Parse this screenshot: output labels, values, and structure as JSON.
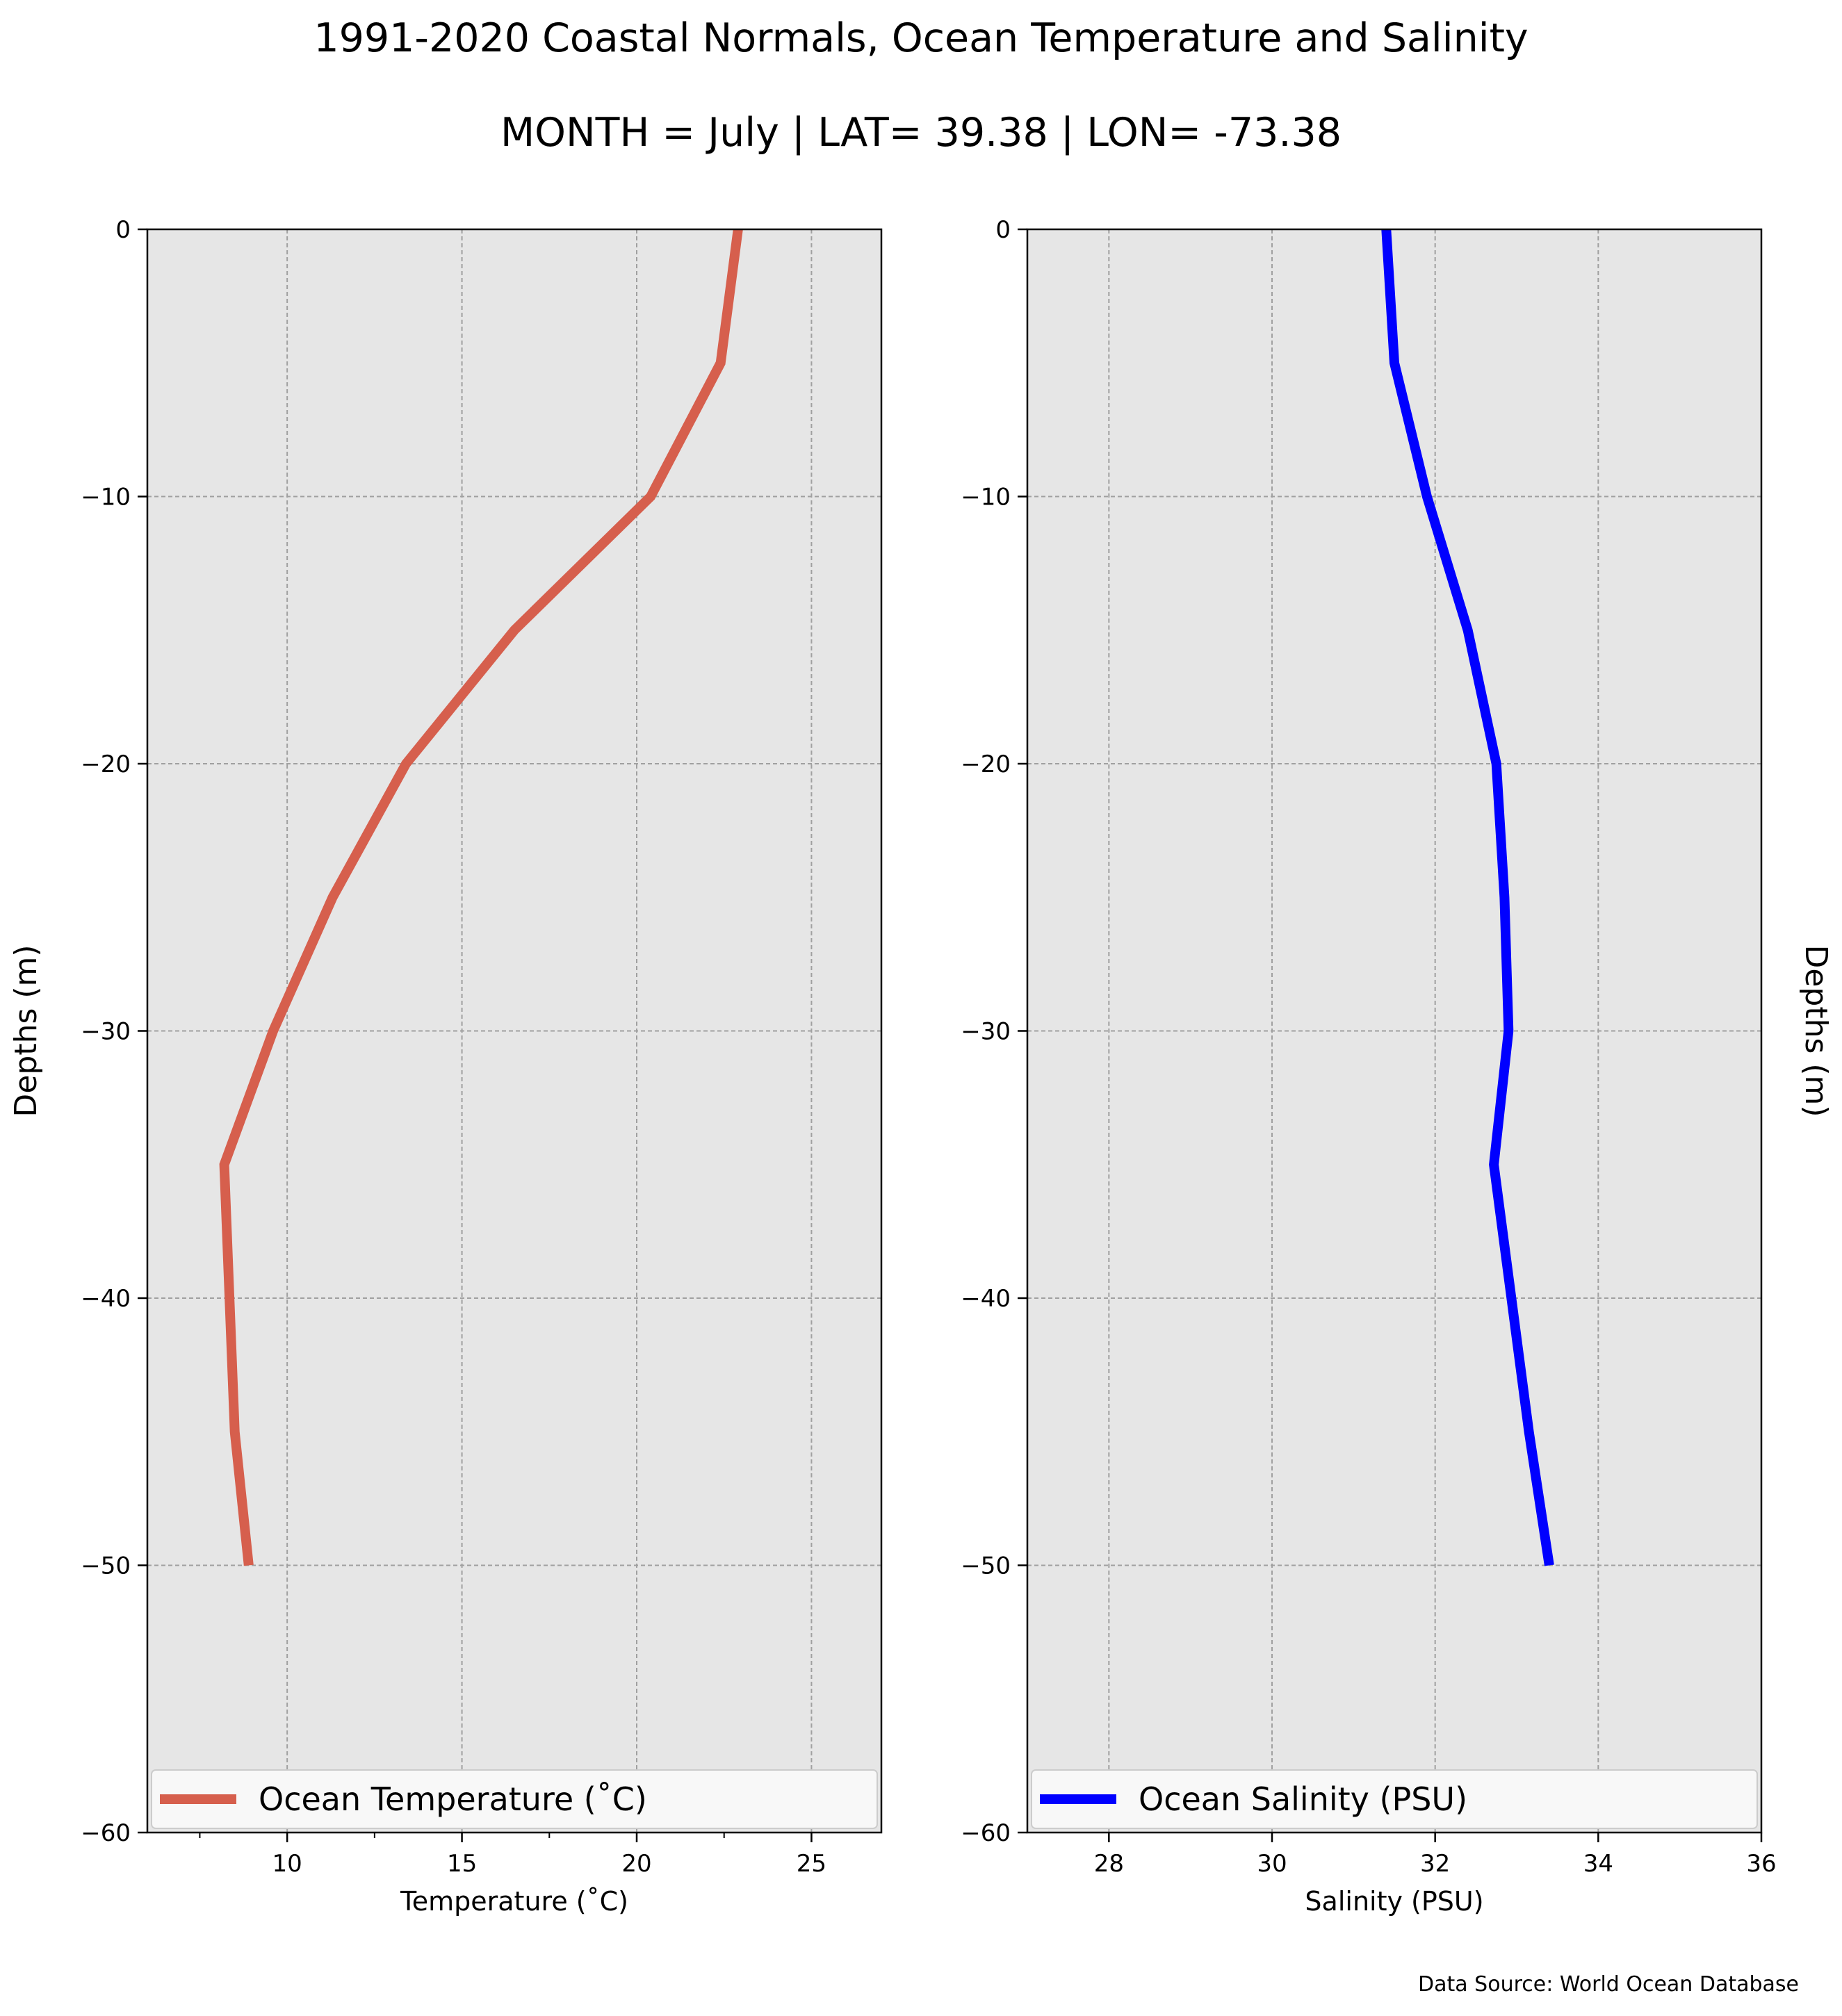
{
  "title": "1991-2020 Coastal Normals, Ocean Temperature and Salinity",
  "subtitle": "MONTH = July | LAT= 39.38 | LON= -73.38",
  "source": "Data Source: World Ocean Database",
  "colors": {
    "temperature": "#d65f4d",
    "salinity": "#0000ff",
    "panel_bg": "#e6e6e6",
    "grid": "#a0a0a0"
  },
  "chart_data": [
    {
      "type": "line",
      "orientation": "profile",
      "xlabel": "Temperature ($^\\circ$C)",
      "xlabel_display": "Temperature (˚C)",
      "ylabel": "Depths (m)",
      "xlim": [
        6,
        27
      ],
      "ylim": [
        -60,
        0
      ],
      "xticks": [
        10,
        15,
        20,
        25
      ],
      "yticks": [
        0,
        -10,
        -20,
        -30,
        -40,
        -50,
        -60
      ],
      "grid": true,
      "legend": "lower center",
      "series": [
        {
          "name": "Ocean Temperature (˚C)",
          "x": [
            22.9,
            22.4,
            20.4,
            16.5,
            13.4,
            11.3,
            9.6,
            8.2,
            8.5,
            8.9
          ],
          "y": [
            0,
            -5,
            -10,
            -15,
            -20,
            -25,
            -30,
            -35,
            -45,
            -50
          ]
        }
      ]
    },
    {
      "type": "line",
      "orientation": "profile",
      "xlabel": "Salinity (PSU)",
      "ylabel": "Depths (m)",
      "xlim": [
        27,
        36
      ],
      "ylim": [
        -60,
        0
      ],
      "xticks": [
        28,
        30,
        32,
        34,
        36
      ],
      "yticks": [
        0,
        -10,
        -20,
        -30,
        -40,
        -50,
        -60
      ],
      "grid": true,
      "legend": "lower center",
      "series": [
        {
          "name": "Ocean Salinity (PSU)",
          "x": [
            31.4,
            31.5,
            31.9,
            32.4,
            32.75,
            32.85,
            32.9,
            32.72,
            33.15,
            33.4
          ],
          "y": [
            0,
            -5,
            -10,
            -15,
            -20,
            -25,
            -30,
            -35,
            -45,
            -50
          ]
        }
      ]
    }
  ]
}
